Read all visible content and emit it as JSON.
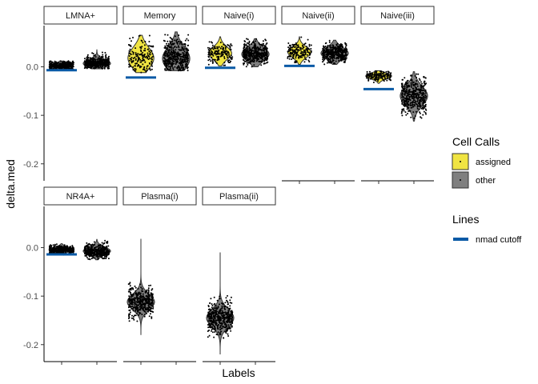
{
  "chart_data": {
    "type": "violin",
    "ylabel": "delta.med",
    "xlabel": "Labels",
    "y_ticks": [
      0.0,
      -0.1,
      -0.2
    ],
    "y_tick_labels": [
      "0.0",
      "-0.1",
      "-0.2"
    ],
    "ylim": [
      -0.235,
      0.085
    ],
    "grid": false,
    "legend_position": "right",
    "legends": [
      {
        "title": "Cell Calls",
        "entries": [
          {
            "label": "assigned",
            "color": "#f0e442"
          },
          {
            "label": "other",
            "color": "#7f7f7f"
          }
        ]
      },
      {
        "title": "Lines",
        "entries": [
          {
            "label": "nmad cutoff",
            "color": "#0a5aa6"
          }
        ]
      }
    ],
    "panels": [
      {
        "label": "LMNA+",
        "cutoff": -0.007,
        "groups": [
          {
            "call": "other",
            "center": 0.002,
            "spread": 0.006,
            "min": -0.006,
            "max": 0.012,
            "width": 0.55
          },
          {
            "call": "other",
            "center": 0.007,
            "spread": 0.008,
            "min": -0.004,
            "max": 0.035,
            "width": 0.95
          }
        ]
      },
      {
        "label": "Memory",
        "cutoff": -0.022,
        "groups": [
          {
            "call": "assigned",
            "center": 0.018,
            "spread": 0.022,
            "min": -0.012,
            "max": 0.065,
            "width": 0.9
          },
          {
            "call": "other",
            "center": 0.017,
            "spread": 0.024,
            "min": -0.008,
            "max": 0.072,
            "width": 0.95
          }
        ]
      },
      {
        "label": "Naive(i)",
        "cutoff": -0.002,
        "groups": [
          {
            "call": "assigned",
            "center": 0.028,
            "spread": 0.013,
            "min": 0.002,
            "max": 0.062,
            "width": 0.8
          },
          {
            "call": "other",
            "center": 0.026,
            "spread": 0.014,
            "min": 0.0,
            "max": 0.058,
            "width": 0.95
          }
        ]
      },
      {
        "label": "Naive(ii)",
        "cutoff": 0.002,
        "groups": [
          {
            "call": "assigned",
            "center": 0.03,
            "spread": 0.011,
            "min": 0.005,
            "max": 0.062,
            "width": 0.8
          },
          {
            "call": "other",
            "center": 0.028,
            "spread": 0.012,
            "min": 0.005,
            "max": 0.055,
            "width": 0.95
          }
        ]
      },
      {
        "label": "Naive(iii)",
        "cutoff": -0.046,
        "groups": [
          {
            "call": "assigned",
            "center": -0.019,
            "spread": 0.006,
            "min": -0.034,
            "max": -0.008,
            "width": 0.9
          },
          {
            "call": "other",
            "center": -0.06,
            "spread": 0.02,
            "min": -0.112,
            "max": -0.01,
            "width": 0.95
          }
        ]
      },
      {
        "label": "NR4A+",
        "cutoff": -0.014,
        "groups": [
          {
            "call": "other",
            "center": -0.004,
            "spread": 0.005,
            "min": -0.015,
            "max": 0.008,
            "width": 0.8
          },
          {
            "call": "other",
            "center": -0.007,
            "spread": 0.008,
            "min": -0.025,
            "max": 0.017,
            "width": 0.95
          }
        ]
      },
      {
        "label": "Plasma(i)",
        "cutoff": null,
        "groups": [
          {
            "call": "other",
            "center": -0.112,
            "spread": 0.016,
            "min": -0.18,
            "max": 0.018,
            "width": 0.95
          }
        ]
      },
      {
        "label": "Plasma(ii)",
        "cutoff": null,
        "groups": [
          {
            "call": "other",
            "center": -0.145,
            "spread": 0.018,
            "min": -0.22,
            "max": -0.01,
            "width": 0.95
          }
        ]
      }
    ]
  }
}
